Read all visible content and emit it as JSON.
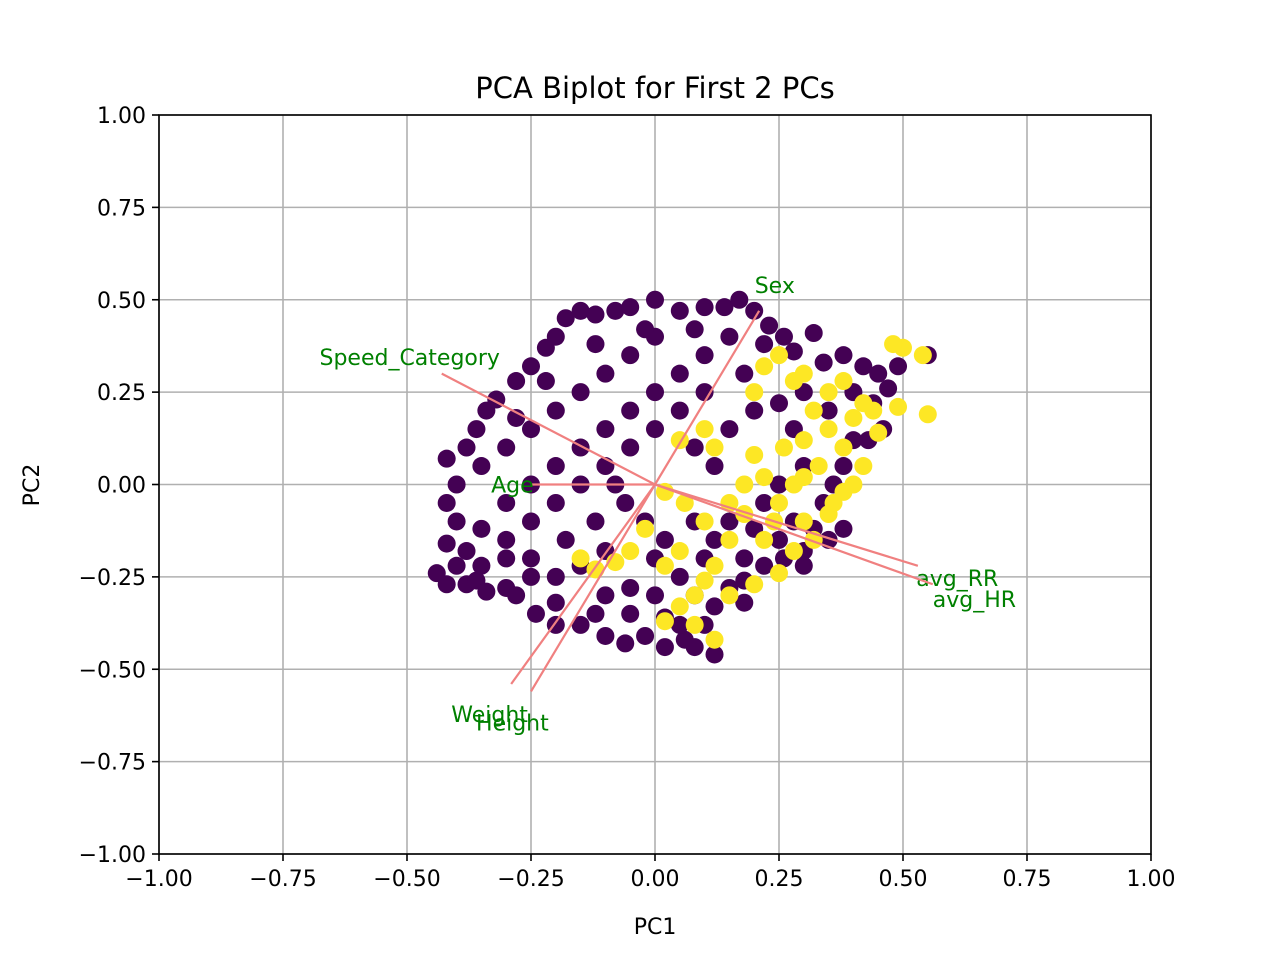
{
  "chart_data": {
    "type": "scatter",
    "title": "PCA Biplot for First 2 PCs",
    "xlabel": "PC1",
    "ylabel": "PC2",
    "xlim": [
      -1.0,
      1.0
    ],
    "ylim": [
      -1.0,
      1.0
    ],
    "xticks": [
      "−1.00",
      "−0.75",
      "−0.50",
      "−0.25",
      "0.00",
      "0.25",
      "0.50",
      "0.75",
      "1.00"
    ],
    "yticks": [
      "−1.00",
      "−0.75",
      "−0.50",
      "−0.25",
      "0.00",
      "0.25",
      "0.50",
      "0.75",
      "1.00"
    ],
    "xtick_values": [
      -1.0,
      -0.75,
      -0.5,
      -0.25,
      0.0,
      0.25,
      0.5,
      0.75,
      1.0
    ],
    "ytick_values": [
      -1.0,
      -0.75,
      -0.5,
      -0.25,
      0.0,
      0.25,
      0.5,
      0.75,
      1.0
    ],
    "grid": true,
    "colors": {
      "class_0": "#440154",
      "class_1": "#fde725",
      "arrow": "#f08080",
      "loading_text": "#008000"
    },
    "series": [
      {
        "class": 0,
        "points": [
          [
            -0.44,
            -0.24
          ],
          [
            -0.42,
            -0.27
          ],
          [
            -0.4,
            -0.22
          ],
          [
            -0.38,
            -0.27
          ],
          [
            -0.36,
            -0.26
          ],
          [
            -0.34,
            -0.29
          ],
          [
            -0.3,
            -0.28
          ],
          [
            -0.28,
            -0.3
          ],
          [
            -0.42,
            -0.16
          ],
          [
            -0.42,
            -0.05
          ],
          [
            -0.42,
            0.07
          ],
          [
            -0.4,
            0.0
          ],
          [
            -0.4,
            -0.1
          ],
          [
            -0.38,
            0.1
          ],
          [
            -0.36,
            0.15
          ],
          [
            -0.34,
            0.2
          ],
          [
            -0.32,
            0.23
          ],
          [
            -0.28,
            0.28
          ],
          [
            -0.25,
            0.32
          ],
          [
            -0.22,
            0.37
          ],
          [
            -0.2,
            0.4
          ],
          [
            -0.18,
            0.45
          ],
          [
            -0.15,
            0.47
          ],
          [
            -0.12,
            0.46
          ],
          [
            -0.08,
            0.47
          ],
          [
            -0.05,
            0.48
          ],
          [
            0.0,
            0.5
          ],
          [
            0.05,
            0.47
          ],
          [
            0.1,
            0.48
          ],
          [
            0.14,
            0.48
          ],
          [
            0.17,
            0.5
          ],
          [
            0.2,
            0.47
          ],
          [
            0.23,
            0.43
          ],
          [
            0.26,
            0.4
          ],
          [
            0.28,
            0.36
          ],
          [
            0.32,
            0.41
          ],
          [
            0.34,
            0.33
          ],
          [
            0.38,
            0.35
          ],
          [
            0.42,
            0.32
          ],
          [
            0.45,
            0.3
          ],
          [
            0.47,
            0.26
          ],
          [
            0.44,
            0.22
          ],
          [
            0.46,
            0.15
          ],
          [
            0.43,
            0.12
          ],
          [
            0.4,
            0.12
          ],
          [
            0.38,
            0.05
          ],
          [
            0.36,
            0.0
          ],
          [
            0.34,
            -0.05
          ],
          [
            0.38,
            -0.12
          ],
          [
            0.35,
            -0.15
          ],
          [
            0.32,
            -0.12
          ],
          [
            0.3,
            -0.18
          ],
          [
            0.26,
            -0.2
          ],
          [
            0.22,
            -0.22
          ],
          [
            0.18,
            -0.26
          ],
          [
            0.15,
            -0.28
          ],
          [
            0.12,
            -0.33
          ],
          [
            0.1,
            -0.38
          ],
          [
            0.06,
            -0.42
          ],
          [
            0.02,
            -0.44
          ],
          [
            -0.02,
            -0.41
          ],
          [
            -0.06,
            -0.43
          ],
          [
            -0.1,
            -0.41
          ],
          [
            -0.15,
            -0.38
          ],
          [
            -0.2,
            -0.38
          ],
          [
            -0.24,
            -0.35
          ],
          [
            -0.12,
            -0.35
          ],
          [
            0.12,
            -0.46
          ],
          [
            0.08,
            -0.44
          ],
          [
            0.55,
            0.35
          ],
          [
            0.49,
            0.32
          ],
          [
            0.4,
            0.25
          ],
          [
            0.35,
            0.2
          ],
          [
            0.3,
            0.25
          ],
          [
            0.25,
            0.22
          ],
          [
            0.22,
            0.38
          ],
          [
            0.28,
            0.15
          ],
          [
            0.3,
            0.05
          ],
          [
            0.25,
            0.0
          ],
          [
            0.22,
            -0.05
          ],
          [
            0.2,
            -0.12
          ],
          [
            0.18,
            -0.2
          ],
          [
            0.12,
            -0.15
          ],
          [
            0.08,
            -0.1
          ],
          [
            0.05,
            -0.25
          ],
          [
            0.0,
            -0.3
          ],
          [
            0.0,
            -0.2
          ],
          [
            0.08,
            -0.3
          ],
          [
            -0.35,
            -0.12
          ],
          [
            -0.3,
            -0.15
          ],
          [
            -0.25,
            -0.2
          ],
          [
            -0.2,
            -0.25
          ],
          [
            -0.15,
            -0.22
          ],
          [
            -0.1,
            -0.18
          ],
          [
            -0.3,
            -0.05
          ],
          [
            -0.25,
            0.0
          ],
          [
            -0.2,
            0.05
          ],
          [
            -0.15,
            0.1
          ],
          [
            -0.1,
            0.15
          ],
          [
            -0.05,
            0.2
          ],
          [
            0.0,
            0.25
          ],
          [
            0.05,
            0.3
          ],
          [
            0.1,
            0.35
          ],
          [
            0.15,
            0.4
          ],
          [
            -0.35,
            0.05
          ],
          [
            -0.3,
            0.1
          ],
          [
            -0.25,
            0.15
          ],
          [
            -0.2,
            0.2
          ],
          [
            -0.15,
            0.25
          ],
          [
            -0.1,
            0.3
          ],
          [
            -0.05,
            0.35
          ],
          [
            0.0,
            0.4
          ],
          [
            -0.3,
            -0.2
          ],
          [
            -0.25,
            -0.1
          ],
          [
            -0.2,
            -0.05
          ],
          [
            -0.15,
            0.0
          ],
          [
            -0.1,
            0.05
          ],
          [
            -0.05,
            0.1
          ],
          [
            0.0,
            0.15
          ],
          [
            0.05,
            0.2
          ],
          [
            -0.1,
            -0.3
          ],
          [
            -0.05,
            -0.35
          ],
          [
            0.02,
            -0.36
          ],
          [
            0.1,
            -0.2
          ],
          [
            0.15,
            -0.1
          ],
          [
            0.12,
            0.05
          ],
          [
            0.08,
            0.1
          ],
          [
            0.1,
            0.25
          ],
          [
            -0.38,
            -0.18
          ],
          [
            -0.35,
            -0.22
          ],
          [
            -0.2,
            -0.32
          ],
          [
            -0.05,
            -0.28
          ],
          [
            0.05,
            -0.38
          ],
          [
            0.18,
            -0.32
          ],
          [
            0.25,
            -0.15
          ],
          [
            0.28,
            -0.1
          ],
          [
            -0.28,
            0.18
          ],
          [
            -0.22,
            0.28
          ],
          [
            -0.12,
            0.38
          ],
          [
            -0.02,
            0.42
          ],
          [
            0.08,
            0.42
          ],
          [
            0.18,
            0.3
          ],
          [
            0.2,
            0.2
          ],
          [
            0.15,
            0.15
          ],
          [
            -0.06,
            -0.05
          ],
          [
            -0.02,
            -0.1
          ],
          [
            0.02,
            -0.15
          ],
          [
            -0.08,
            0.0
          ],
          [
            -0.12,
            -0.1
          ],
          [
            -0.18,
            -0.15
          ],
          [
            -0.25,
            -0.25
          ],
          [
            0.3,
            -0.22
          ]
        ]
      },
      {
        "class": 1,
        "points": [
          [
            0.5,
            0.37
          ],
          [
            0.54,
            0.35
          ],
          [
            0.48,
            0.38
          ],
          [
            0.55,
            0.19
          ],
          [
            0.49,
            0.21
          ],
          [
            0.44,
            0.2
          ],
          [
            0.45,
            0.14
          ],
          [
            0.42,
            0.05
          ],
          [
            0.38,
            0.1
          ],
          [
            0.35,
            0.15
          ],
          [
            0.32,
            0.2
          ],
          [
            0.28,
            0.28
          ],
          [
            0.25,
            0.35
          ],
          [
            0.22,
            0.32
          ],
          [
            0.3,
            0.12
          ],
          [
            0.33,
            0.05
          ],
          [
            0.28,
            0.0
          ],
          [
            0.25,
            -0.05
          ],
          [
            0.3,
            -0.1
          ],
          [
            0.35,
            -0.08
          ],
          [
            0.38,
            -0.02
          ],
          [
            0.28,
            -0.18
          ],
          [
            0.25,
            -0.24
          ],
          [
            0.2,
            -0.27
          ],
          [
            0.15,
            -0.3
          ],
          [
            0.1,
            -0.26
          ],
          [
            0.08,
            -0.3
          ],
          [
            0.05,
            -0.33
          ],
          [
            0.02,
            -0.37
          ],
          [
            0.08,
            -0.38
          ],
          [
            0.12,
            -0.42
          ],
          [
            0.15,
            -0.05
          ],
          [
            0.12,
            0.1
          ],
          [
            0.1,
            0.15
          ],
          [
            0.05,
            0.12
          ],
          [
            0.02,
            -0.02
          ],
          [
            -0.02,
            -0.12
          ],
          [
            -0.05,
            -0.18
          ],
          [
            -0.08,
            -0.21
          ],
          [
            -0.12,
            -0.23
          ],
          [
            -0.15,
            -0.2
          ],
          [
            0.2,
            0.08
          ],
          [
            0.22,
            0.02
          ],
          [
            0.18,
            -0.08
          ],
          [
            0.15,
            -0.15
          ],
          [
            0.05,
            -0.18
          ],
          [
            0.02,
            -0.22
          ],
          [
            0.35,
            0.25
          ],
          [
            0.4,
            0.18
          ],
          [
            0.38,
            0.28
          ],
          [
            0.42,
            0.22
          ],
          [
            0.3,
            0.3
          ],
          [
            0.2,
            0.25
          ],
          [
            0.32,
            -0.15
          ],
          [
            0.22,
            -0.15
          ],
          [
            0.12,
            -0.22
          ],
          [
            0.26,
            0.1
          ],
          [
            0.3,
            0.02
          ],
          [
            0.36,
            -0.05
          ],
          [
            0.4,
            0.0
          ],
          [
            0.24,
            -0.1
          ],
          [
            0.18,
            0.0
          ],
          [
            0.1,
            -0.1
          ],
          [
            0.06,
            -0.05
          ]
        ]
      }
    ],
    "loadings": [
      {
        "label": "Sex",
        "x": 0.21,
        "y": 0.47
      },
      {
        "label": "Speed_Category",
        "x": -0.43,
        "y": 0.3
      },
      {
        "label": "Age",
        "x": -0.25,
        "y": 0.0
      },
      {
        "label": "avg_RR",
        "x": 0.53,
        "y": -0.22
      },
      {
        "label": "avg_HR",
        "x": 0.56,
        "y": -0.27
      },
      {
        "label": "Weight",
        "x": -0.29,
        "y": -0.54
      },
      {
        "label": "Height",
        "x": -0.25,
        "y": -0.56
      }
    ]
  }
}
